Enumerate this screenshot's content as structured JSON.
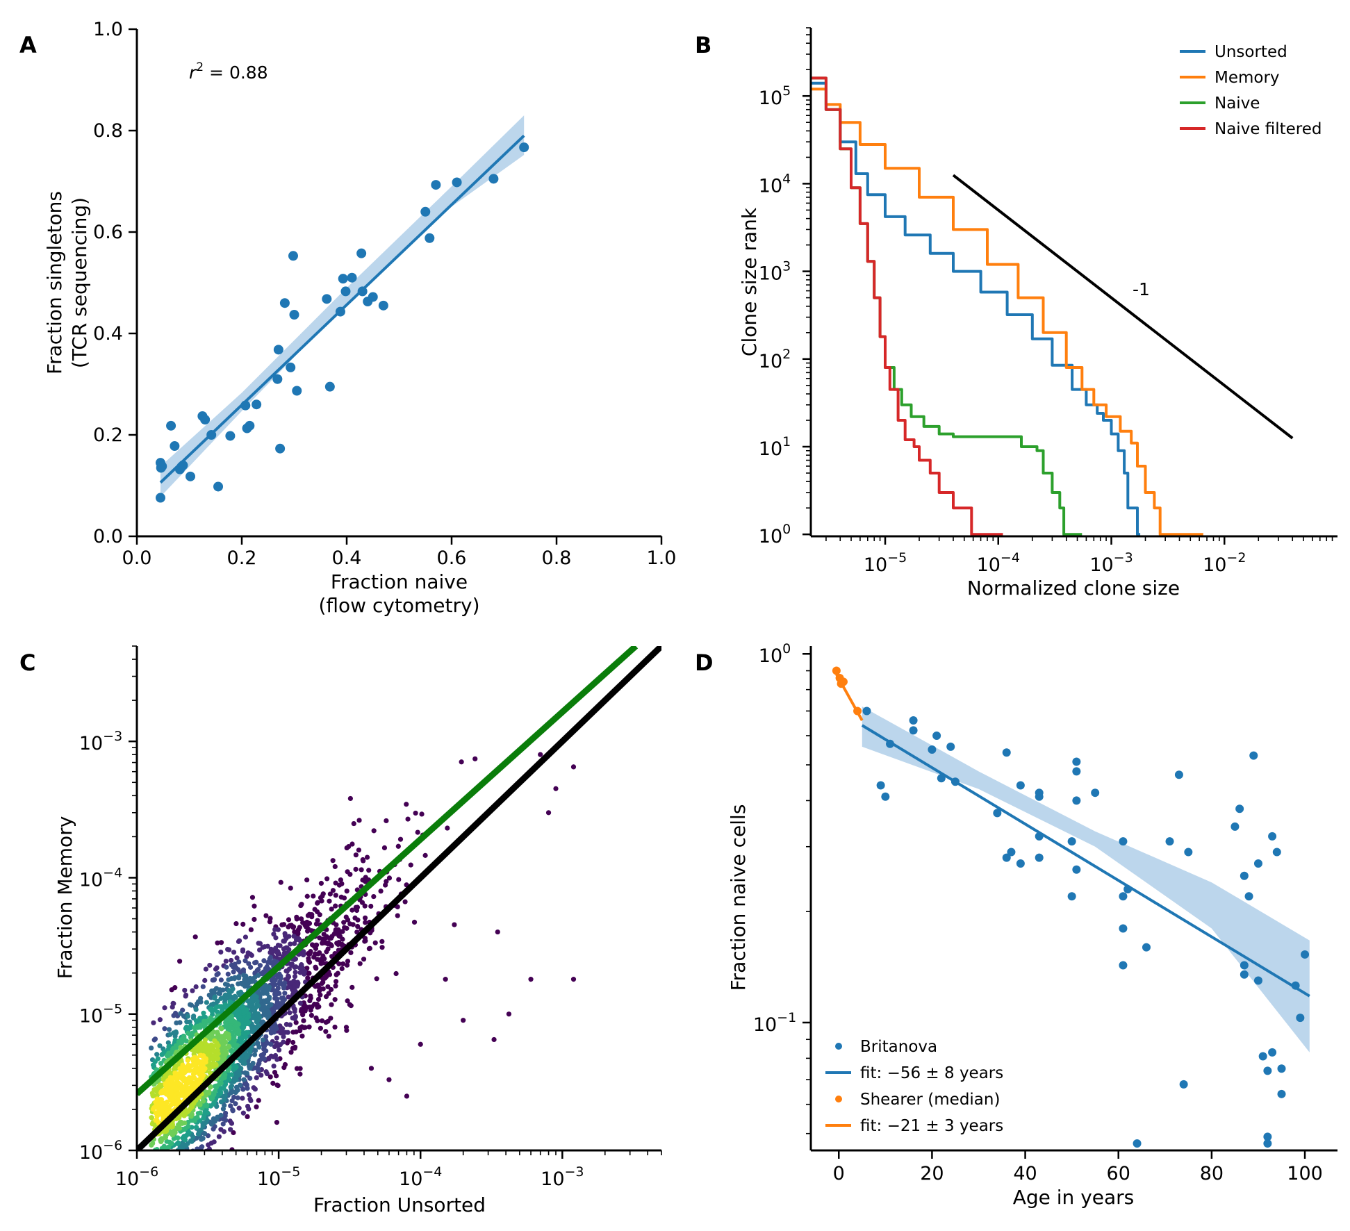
{
  "colors": {
    "blue": "#1f77b4",
    "orange": "#ff7f0e",
    "green": "#2ca02c",
    "red": "#d62728",
    "band": "#a6c8e6",
    "black": "#000000",
    "darkgreen": "#0a7d0a"
  },
  "chart_data": [
    {
      "panel": "A",
      "type": "scatter",
      "xlabel": [
        "Fraction naive",
        "(flow cytometry)"
      ],
      "ylabel": [
        "Fraction singletons",
        "(TCR sequencing)"
      ],
      "xlim": [
        0,
        1
      ],
      "ylim": [
        0,
        1
      ],
      "xticks": [
        "0.0",
        "0.2",
        "0.4",
        "0.6",
        "0.8",
        "1.0"
      ],
      "yticks": [
        "0.0",
        "0.2",
        "0.4",
        "0.6",
        "0.8",
        "1.0"
      ],
      "annotation": {
        "base": "r",
        "sup": "2",
        "rest": " = 0.88"
      },
      "points": [
        [
          0.045,
          0.145
        ],
        [
          0.046,
          0.135
        ],
        [
          0.045,
          0.076
        ],
        [
          0.048,
          0.138
        ],
        [
          0.065,
          0.218
        ],
        [
          0.072,
          0.178
        ],
        [
          0.082,
          0.132
        ],
        [
          0.085,
          0.137
        ],
        [
          0.088,
          0.14
        ],
        [
          0.102,
          0.118
        ],
        [
          0.125,
          0.237
        ],
        [
          0.13,
          0.23
        ],
        [
          0.142,
          0.2
        ],
        [
          0.155,
          0.098
        ],
        [
          0.178,
          0.198
        ],
        [
          0.207,
          0.258
        ],
        [
          0.21,
          0.213
        ],
        [
          0.215,
          0.218
        ],
        [
          0.228,
          0.26
        ],
        [
          0.268,
          0.31
        ],
        [
          0.27,
          0.368
        ],
        [
          0.273,
          0.173
        ],
        [
          0.282,
          0.46
        ],
        [
          0.293,
          0.333
        ],
        [
          0.298,
          0.553
        ],
        [
          0.3,
          0.437
        ],
        [
          0.305,
          0.287
        ],
        [
          0.362,
          0.468
        ],
        [
          0.368,
          0.295
        ],
        [
          0.388,
          0.443
        ],
        [
          0.393,
          0.508
        ],
        [
          0.398,
          0.483
        ],
        [
          0.41,
          0.51
        ],
        [
          0.428,
          0.558
        ],
        [
          0.43,
          0.483
        ],
        [
          0.44,
          0.463
        ],
        [
          0.45,
          0.472
        ],
        [
          0.47,
          0.455
        ],
        [
          0.55,
          0.64
        ],
        [
          0.558,
          0.588
        ],
        [
          0.57,
          0.693
        ],
        [
          0.61,
          0.698
        ],
        [
          0.68,
          0.705
        ],
        [
          0.738,
          0.767
        ]
      ],
      "fit": {
        "x": [
          0.045,
          0.738
        ],
        "y": [
          0.106,
          0.79
        ]
      },
      "band": {
        "x": [
          0.045,
          0.2,
          0.4,
          0.6,
          0.738
        ],
        "lower": [
          0.078,
          0.247,
          0.46,
          0.65,
          0.752
        ],
        "upper": [
          0.138,
          0.283,
          0.49,
          0.69,
          0.83
        ]
      }
    },
    {
      "panel": "B",
      "type": "line",
      "xlabel": "Normalized clone size",
      "ylabel": "Clone size rank",
      "xscale": "log",
      "yscale": "log",
      "xlim": [
        2.2e-06,
        0.1
      ],
      "ylim": [
        0.95,
        600000.0
      ],
      "xticks": [
        {
          "base": "10",
          "exp": "−5",
          "v": 1e-05
        },
        {
          "base": "10",
          "exp": "−4",
          "v": 0.0001
        },
        {
          "base": "10",
          "exp": "−3",
          "v": 0.001
        },
        {
          "base": "10",
          "exp": "−2",
          "v": 0.01
        }
      ],
      "yticks": [
        {
          "base": "10",
          "exp": "0",
          "v": 1
        },
        {
          "base": "10",
          "exp": "1",
          "v": 10
        },
        {
          "base": "10",
          "exp": "2",
          "v": 100
        },
        {
          "base": "10",
          "exp": "3",
          "v": 1000
        },
        {
          "base": "10",
          "exp": "4",
          "v": 10000
        },
        {
          "base": "10",
          "exp": "5",
          "v": 100000
        }
      ],
      "legend_position": "top-right",
      "series": [
        {
          "name": "Unsorted",
          "color": "blue",
          "x": [
            2.2e-06,
            3e-06,
            4e-06,
            5.5e-06,
            7e-06,
            1e-05,
            1.5e-05,
            2.5e-05,
            4e-05,
            7e-05,
            0.00012,
            0.0002,
            0.0003,
            0.00045,
            0.0006,
            0.00075,
            0.00085,
            0.001,
            0.00115,
            0.0013,
            0.0014,
            0.00155,
            0.0017,
            0.0018
          ],
          "y": [
            140000.0,
            70000.0,
            30000.0,
            13000.0,
            7500,
            4200,
            2600,
            1600,
            1000,
            580,
            320,
            170,
            85,
            45,
            30,
            24,
            20,
            14,
            9,
            5,
            2,
            2,
            1,
            1
          ]
        },
        {
          "name": "Memory",
          "color": "orange",
          "x": [
            2.2e-06,
            3e-06,
            4e-06,
            6e-06,
            1e-05,
            2e-05,
            4e-05,
            8e-05,
            0.00015,
            0.00025,
            0.0004,
            0.00055,
            0.0007,
            0.0009,
            0.0012,
            0.0015,
            0.0017,
            0.002,
            0.0024,
            0.0027,
            0.0035,
            0.0065
          ],
          "y": [
            120000.0,
            80000.0,
            50000.0,
            28000.0,
            15000.0,
            7000,
            3000,
            1200,
            500,
            200,
            80,
            45,
            30,
            22,
            15,
            11,
            6,
            3,
            2,
            1,
            1,
            1
          ]
        },
        {
          "name": "Naive",
          "color": "green",
          "x": [
            2.2e-06,
            3e-06,
            4e-06,
            5e-06,
            6e-06,
            7e-06,
            8e-06,
            9e-06,
            1e-05,
            1.2e-05,
            1.4e-05,
            1.7e-05,
            2.2e-05,
            3e-05,
            4e-05,
            5e-05,
            0.0001,
            0.00016,
            0.00022,
            0.00025,
            0.0003,
            0.00035,
            0.00038,
            0.00055
          ],
          "y": [
            160000.0,
            70000.0,
            25000.0,
            9000,
            3500,
            1300,
            500,
            180,
            80,
            45,
            30,
            22,
            17,
            14,
            13,
            13,
            13,
            10,
            9,
            5,
            3,
            2,
            1,
            1
          ]
        },
        {
          "name": "Naive filtered",
          "color": "red",
          "x": [
            2.2e-06,
            3e-06,
            4e-06,
            5e-06,
            6e-06,
            7e-06,
            8e-06,
            9e-06,
            1e-05,
            1.1e-05,
            1.3e-05,
            1.5e-05,
            1.8e-05,
            2e-05,
            2.5e-05,
            3e-05,
            4e-05,
            5e-05,
            5.8e-05,
            6e-05,
            0.00011
          ],
          "y": [
            160000.0,
            70000.0,
            25000.0,
            9000,
            3500,
            1300,
            500,
            180,
            80,
            45,
            20,
            12,
            10,
            7,
            5,
            3,
            2,
            2,
            1,
            1,
            1
          ]
        }
      ],
      "guide_line": {
        "x": [
          4e-05,
          0.04
        ],
        "y": [
          12500,
          12.5
        ],
        "label": "-1"
      }
    },
    {
      "panel": "C",
      "type": "scatter",
      "xlabel": "Fraction Unsorted",
      "ylabel": "Fraction Memory",
      "xscale": "log",
      "yscale": "log",
      "xlim": [
        1e-06,
        0.005
      ],
      "ylim": [
        1e-06,
        0.005
      ],
      "xticks": [
        {
          "base": "10",
          "exp": "−6",
          "v": 1e-06
        },
        {
          "base": "10",
          "exp": "−5",
          "v": 1e-05
        },
        {
          "base": "10",
          "exp": "−4",
          "v": 0.0001
        },
        {
          "base": "10",
          "exp": "−3",
          "v": 0.001
        }
      ],
      "yticks": [
        {
          "base": "10",
          "exp": "−6",
          "v": 1e-06
        },
        {
          "base": "10",
          "exp": "−5",
          "v": 1e-05
        },
        {
          "base": "10",
          "exp": "−4",
          "v": 0.0001
        },
        {
          "base": "10",
          "exp": "−3",
          "v": 0.001
        }
      ],
      "lines": [
        {
          "name": "identity",
          "color": "black",
          "x": [
            1e-06,
            0.005
          ],
          "y": [
            1e-06,
            0.005
          ]
        },
        {
          "name": "fit",
          "color": "darkgreen",
          "x": [
            1e-06,
            0.0033
          ],
          "y": [
            2.6e-06,
            0.005
          ]
        }
      ],
      "outliers": [
        [
          0.0006,
          1.8e-05
        ],
        [
          0.0012,
          1.8e-05
        ],
        [
          0.00015,
          1.8e-05
        ],
        [
          0.00033,
          6.5e-06
        ],
        [
          0.00042,
          1e-05
        ],
        [
          0.00035,
          4e-05
        ],
        [
          0.0008,
          0.0003
        ],
        [
          0.0009,
          0.00045
        ],
        [
          0.0012,
          0.00065
        ],
        [
          0.0007,
          0.0008
        ],
        [
          3e-05,
          8e-06
        ],
        [
          4.5e-05,
          4e-06
        ],
        [
          6e-05,
          3.3e-06
        ],
        [
          8e-05,
          2.5e-06
        ],
        [
          0.0002,
          9e-06
        ],
        [
          0.0001,
          6e-06
        ]
      ]
    },
    {
      "panel": "D",
      "type": "scatter",
      "xlabel": "Age in years",
      "ylabel": "Fraction naive cells",
      "yscale": "log",
      "xlim": [
        -6,
        107
      ],
      "ylim": [
        0.045,
        1.05
      ],
      "xticks": [
        "0",
        "20",
        "40",
        "60",
        "80",
        "100"
      ],
      "yticks": [
        {
          "base": "10",
          "exp": "0",
          "v": 1
        },
        {
          "base": "10",
          "exp": "−1",
          "v": 0.1
        }
      ],
      "legend_position": "bottom-left",
      "legend": [
        {
          "label": "Britanova",
          "kind": "dot",
          "color": "blue"
        },
        {
          "label": "fit: −56 ± 8 years",
          "kind": "line",
          "color": "blue"
        },
        {
          "label": "Shearer (median)",
          "kind": "dot",
          "color": "orange"
        },
        {
          "label": "fit: −21 ± 3 years",
          "kind": "line",
          "color": "orange"
        }
      ],
      "britanova_points": [
        [
          6,
          0.7
        ],
        [
          9,
          0.44
        ],
        [
          10,
          0.41
        ],
        [
          11,
          0.57
        ],
        [
          16,
          0.66
        ],
        [
          16,
          0.62
        ],
        [
          20,
          0.55
        ],
        [
          21,
          0.6
        ],
        [
          22,
          0.46
        ],
        [
          24,
          0.56
        ],
        [
          25,
          0.45
        ],
        [
          34,
          0.37
        ],
        [
          36,
          0.28
        ],
        [
          36,
          0.54
        ],
        [
          37,
          0.29
        ],
        [
          39,
          0.27
        ],
        [
          39,
          0.44
        ],
        [
          43,
          0.41
        ],
        [
          43,
          0.42
        ],
        [
          43,
          0.32
        ],
        [
          43,
          0.28
        ],
        [
          50,
          0.31
        ],
        [
          50,
          0.22
        ],
        [
          51,
          0.26
        ],
        [
          51,
          0.51
        ],
        [
          51,
          0.48
        ],
        [
          51,
          0.4
        ],
        [
          55,
          0.42
        ],
        [
          61,
          0.31
        ],
        [
          61,
          0.22
        ],
        [
          61,
          0.18
        ],
        [
          61,
          0.143
        ],
        [
          62,
          0.23
        ],
        [
          64,
          0.047
        ],
        [
          66,
          0.16
        ],
        [
          71,
          0.31
        ],
        [
          73,
          0.47
        ],
        [
          74,
          0.068
        ],
        [
          75,
          0.29
        ],
        [
          85,
          0.34
        ],
        [
          86,
          0.38
        ],
        [
          87,
          0.25
        ],
        [
          87,
          0.143
        ],
        [
          87,
          0.135
        ],
        [
          88,
          0.22
        ],
        [
          89,
          0.53
        ],
        [
          90,
          0.27
        ],
        [
          90,
          0.13
        ],
        [
          91,
          0.081
        ],
        [
          92,
          0.074
        ],
        [
          92,
          0.049
        ],
        [
          92,
          0.047
        ],
        [
          93,
          0.083
        ],
        [
          93,
          0.32
        ],
        [
          94,
          0.29
        ],
        [
          95,
          0.075
        ],
        [
          95,
          0.064
        ],
        [
          98,
          0.126
        ],
        [
          99,
          0.103
        ],
        [
          100,
          0.153
        ]
      ],
      "shearer_points": [
        [
          -0.5,
          0.9
        ],
        [
          0.2,
          0.86
        ],
        [
          0.5,
          0.83
        ],
        [
          1,
          0.84
        ],
        [
          4,
          0.7
        ]
      ],
      "fit_britanova": {
        "x": [
          5,
          101
        ],
        "y": [
          0.64,
          0.118
        ]
      },
      "band_britanova": {
        "x": [
          5,
          30,
          55,
          80,
          101
        ],
        "lower": [
          0.56,
          0.43,
          0.3,
          0.18,
          0.083
        ],
        "upper": [
          0.72,
          0.48,
          0.33,
          0.24,
          0.167
        ]
      },
      "fit_shearer": {
        "x": [
          -0.5,
          5
        ],
        "y": [
          0.88,
          0.66
        ]
      }
    }
  ]
}
